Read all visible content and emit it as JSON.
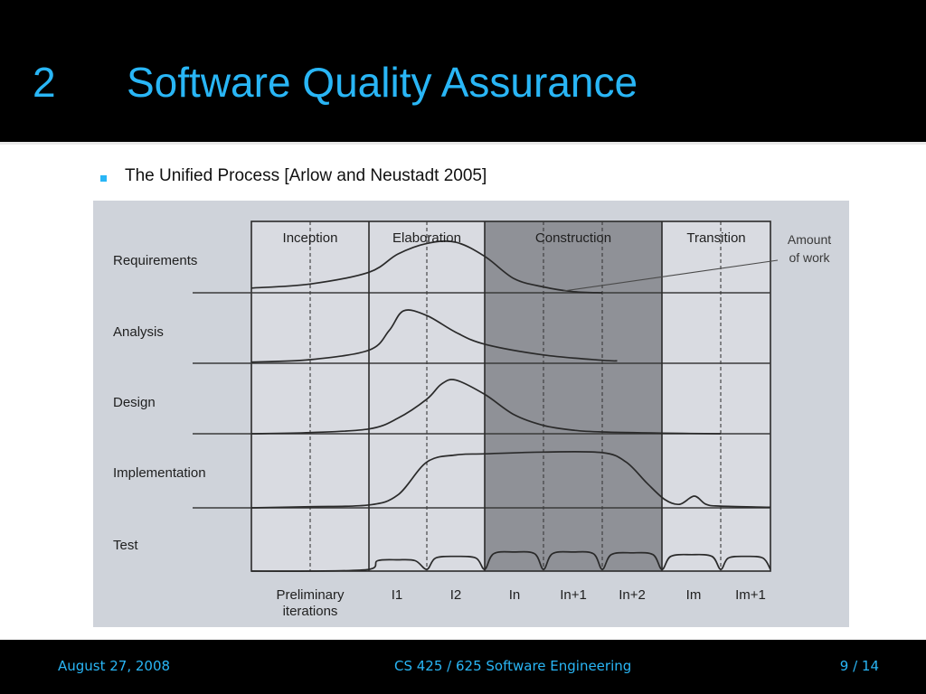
{
  "slide": {
    "number": "2",
    "title": "Software Quality Assurance",
    "bullet": "The Unified Process [Arlow and Neustadt 2005]"
  },
  "footer": {
    "date": "August 27, 2008",
    "course": "CS 425 / 625 Software Engineering",
    "page": "9 / 14"
  },
  "colors": {
    "accent": "#29b6f6",
    "figure_background": "#cfd3da",
    "construction_shade": "#8f9197"
  },
  "chart_data": {
    "type": "area",
    "phases": [
      "Inception",
      "Elaboration",
      "Construction",
      "Transition"
    ],
    "workflows": [
      "Requirements",
      "Analysis",
      "Design",
      "Implementation",
      "Test"
    ],
    "iterations": [
      "Preliminary iterations",
      "I1",
      "I2",
      "In",
      "In+1",
      "In+2",
      "Im",
      "Im+1"
    ],
    "annotation": "Amount of work",
    "x_unit": "iteration index",
    "y_unit": "relative amount of work",
    "ylim": [
      0,
      1
    ],
    "series": [
      {
        "name": "Requirements",
        "points": [
          [
            0.0,
            0.08
          ],
          [
            0.5,
            0.15
          ],
          [
            1.0,
            0.35
          ],
          [
            1.5,
            0.66
          ],
          [
            2.0,
            0.84
          ],
          [
            2.5,
            0.86
          ],
          [
            3.0,
            0.62
          ],
          [
            3.5,
            0.24
          ],
          [
            4.0,
            0.1
          ],
          [
            4.5,
            0.02
          ],
          [
            5.0,
            0.0
          ]
        ]
      },
      {
        "name": "Analysis",
        "points": [
          [
            0.0,
            0.02
          ],
          [
            0.5,
            0.06
          ],
          [
            1.0,
            0.22
          ],
          [
            1.35,
            0.55
          ],
          [
            1.6,
            0.88
          ],
          [
            2.0,
            0.8
          ],
          [
            2.5,
            0.52
          ],
          [
            3.0,
            0.32
          ],
          [
            4.0,
            0.14
          ],
          [
            5.0,
            0.05
          ],
          [
            5.25,
            0.04
          ]
        ]
      },
      {
        "name": "Design",
        "points": [
          [
            0.0,
            0.0
          ],
          [
            0.5,
            0.02
          ],
          [
            1.0,
            0.08
          ],
          [
            1.5,
            0.26
          ],
          [
            2.0,
            0.58
          ],
          [
            2.25,
            0.83
          ],
          [
            2.5,
            0.9
          ],
          [
            3.0,
            0.66
          ],
          [
            3.5,
            0.32
          ],
          [
            4.0,
            0.14
          ],
          [
            4.5,
            0.06
          ],
          [
            5.0,
            0.03
          ],
          [
            6.0,
            0.01
          ],
          [
            7.0,
            0.0
          ]
        ]
      },
      {
        "name": "Implementation",
        "points": [
          [
            0.0,
            0.0
          ],
          [
            0.5,
            0.02
          ],
          [
            1.0,
            0.05
          ],
          [
            1.5,
            0.22
          ],
          [
            2.0,
            0.78
          ],
          [
            2.5,
            0.9
          ],
          [
            3.0,
            0.92
          ],
          [
            4.0,
            0.95
          ],
          [
            5.0,
            0.94
          ],
          [
            5.4,
            0.78
          ],
          [
            5.75,
            0.42
          ],
          [
            6.05,
            0.14
          ],
          [
            6.3,
            0.06
          ],
          [
            6.55,
            0.2
          ],
          [
            6.75,
            0.06
          ],
          [
            7.0,
            0.03
          ],
          [
            8.0,
            0.01
          ]
        ]
      },
      {
        "name": "Test",
        "points": [
          [
            0.0,
            0.0
          ],
          [
            0.5,
            0.0
          ],
          [
            1.0,
            0.04
          ],
          [
            1.15,
            0.24
          ],
          [
            1.5,
            0.26
          ],
          [
            1.8,
            0.24
          ],
          [
            2.0,
            0.04
          ],
          [
            2.15,
            0.3
          ],
          [
            2.5,
            0.34
          ],
          [
            2.85,
            0.3
          ],
          [
            3.0,
            0.04
          ],
          [
            3.15,
            0.4
          ],
          [
            3.5,
            0.44
          ],
          [
            3.85,
            0.4
          ],
          [
            4.0,
            0.04
          ],
          [
            4.15,
            0.4
          ],
          [
            4.5,
            0.44
          ],
          [
            4.85,
            0.4
          ],
          [
            5.0,
            0.04
          ],
          [
            5.15,
            0.38
          ],
          [
            5.5,
            0.42
          ],
          [
            5.85,
            0.38
          ],
          [
            6.0,
            0.04
          ],
          [
            6.15,
            0.34
          ],
          [
            6.5,
            0.38
          ],
          [
            6.85,
            0.34
          ],
          [
            7.0,
            0.04
          ],
          [
            7.15,
            0.3
          ],
          [
            7.5,
            0.34
          ],
          [
            7.85,
            0.3
          ],
          [
            8.0,
            0.04
          ]
        ]
      }
    ]
  }
}
